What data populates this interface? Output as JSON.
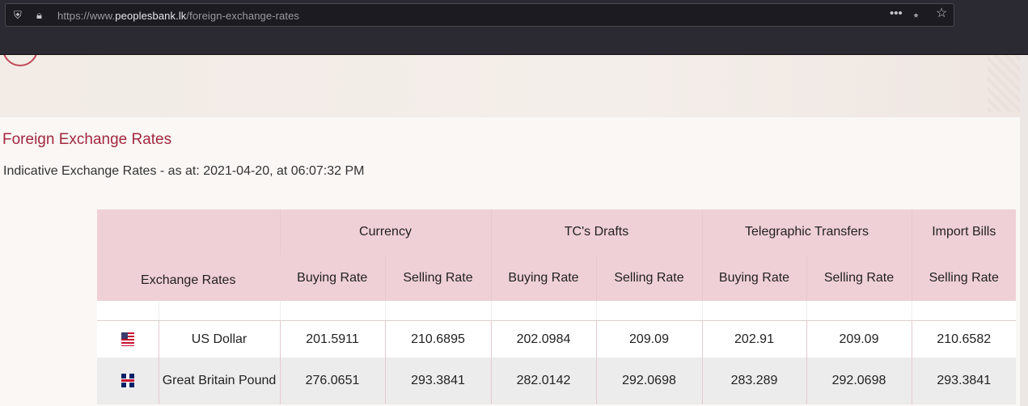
{
  "browser": {
    "url_prefix": "https://www.",
    "url_host": "peoplesbank.lk",
    "url_path": "/foreign-exchange-rates",
    "icons": [
      "shield-icon",
      "lock-icon",
      "more-icon",
      "pocket-icon",
      "star-icon"
    ]
  },
  "page": {
    "title": "Foreign Exchange Rates",
    "subtitle": "Indicative Exchange Rates - as at: 2021-04-20, at 06:07:32 PM"
  },
  "table": {
    "group_headers": {
      "currency": "Currency",
      "tc_drafts": "TC's Drafts",
      "telegraphic": "Telegraphic Transfers",
      "import_bills": "Import Bills"
    },
    "sub_headers": {
      "exchange_rates": "Exchange Rates",
      "currency_buying": "Buying Rate",
      "currency_selling": "Selling Rate",
      "tc_buying": "Buying Rate",
      "tc_selling": "Selling Rate",
      "tt_buying": "Buying Rate",
      "tt_selling": "Selling Rate",
      "import_selling": "Selling Rate"
    },
    "rows": [
      {
        "flag": "us-flag-icon",
        "name": "US Dollar",
        "values": [
          "201.5911",
          "210.6895",
          "202.0984",
          "209.09",
          "202.91",
          "209.09",
          "210.6582"
        ]
      },
      {
        "flag": "uk-flag-icon",
        "name": "Great Britain Pound",
        "values": [
          "276.0651",
          "293.3841",
          "282.0142",
          "292.0698",
          "283.289",
          "292.0698",
          "293.3841"
        ]
      }
    ]
  }
}
